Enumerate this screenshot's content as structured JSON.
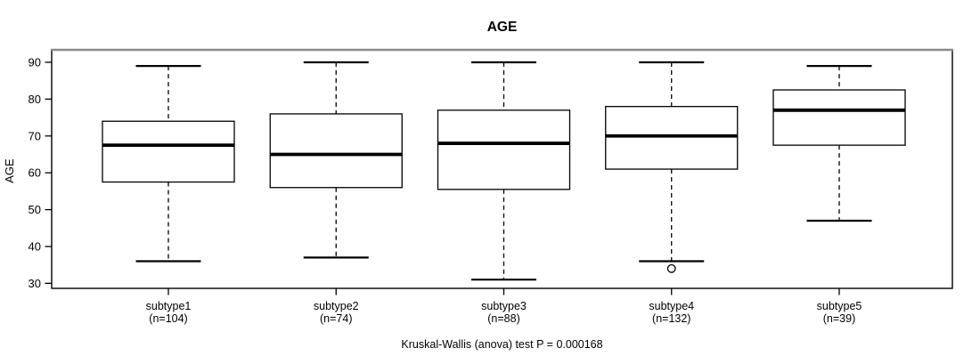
{
  "chart_data": {
    "type": "boxplot",
    "title": "AGE",
    "ylabel": "AGE",
    "xlabel": "",
    "caption": "Kruskal-Wallis (anova) test P = 0.000168",
    "grid": false,
    "legend": "none",
    "y_ticks": [
      30,
      40,
      50,
      60,
      70,
      80,
      90
    ],
    "ylim": [
      28.6,
      93.1
    ],
    "categories": [
      "subtype1",
      "subtype2",
      "subtype3",
      "subtype4",
      "subtype5"
    ],
    "category_sublabels": [
      "(n=104)",
      "(n=74)",
      "(n=88)",
      "(n=132)",
      "(n=39)"
    ],
    "series": [
      {
        "name": "subtype1",
        "n": 104,
        "low": 36,
        "q1": 57.5,
        "median": 67.5,
        "q3": 74,
        "high": 89,
        "outliers": []
      },
      {
        "name": "subtype2",
        "n": 74,
        "low": 37,
        "q1": 56,
        "median": 65,
        "q3": 76,
        "high": 90,
        "outliers": []
      },
      {
        "name": "subtype3",
        "n": 88,
        "low": 31,
        "q1": 55.5,
        "median": 68,
        "q3": 77,
        "high": 90,
        "outliers": []
      },
      {
        "name": "subtype4",
        "n": 132,
        "low": 36,
        "q1": 61,
        "median": 70,
        "q3": 78,
        "high": 90,
        "outliers": [
          34
        ]
      },
      {
        "name": "subtype5",
        "n": 39,
        "low": 47,
        "q1": 67.5,
        "median": 77,
        "q3": 82.5,
        "high": 89,
        "outliers": []
      }
    ],
    "colors": {
      "stroke": "#000000",
      "box_fill": "#ffffff",
      "frame_top": "#8a8a8a",
      "background": "#ffffff",
      "text": "#000000"
    }
  }
}
